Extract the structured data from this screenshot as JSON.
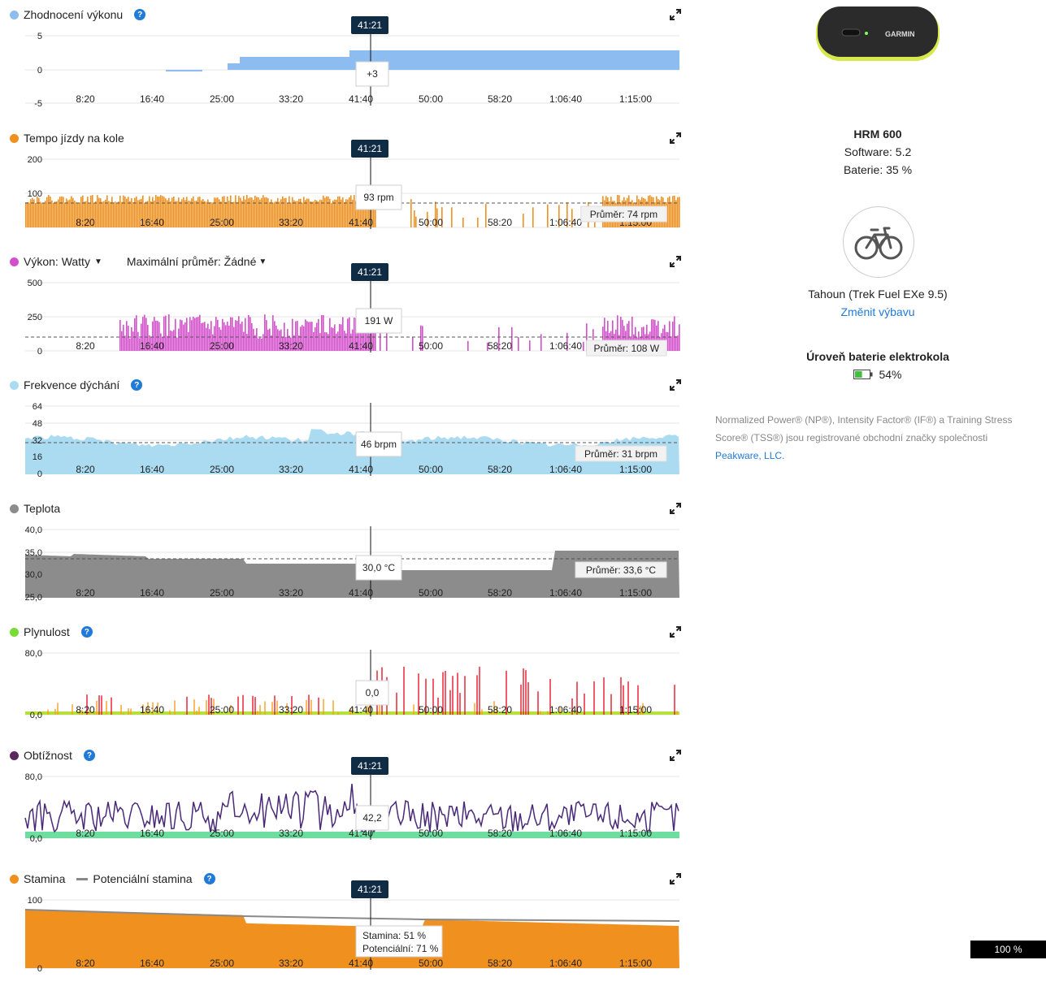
{
  "x_ticks": [
    "8:20",
    "16:40",
    "25:00",
    "33:20",
    "41:40",
    "50:00",
    "58:20",
    "1:06:40",
    "1:15:00"
  ],
  "cursor_time": "41:21",
  "charts": [
    {
      "key": "p1",
      "title": "Zhodnocení výkonu",
      "has_help": true,
      "color": "#8cbcf0",
      "y_ticks": [
        "5",
        "0",
        "-5"
      ],
      "tooltip": "+3",
      "cursor_badge": true,
      "avg_label": ""
    },
    {
      "key": "p2",
      "title": "Tempo jízdy na kole",
      "has_help": false,
      "color": "#f0901f",
      "y_ticks": [
        "200",
        "100",
        ""
      ],
      "tooltip": "93 rpm",
      "cursor_badge": true,
      "avg_label": "Průměr: 74 rpm"
    },
    {
      "key": "p3",
      "title": "Výkon: Watty",
      "has_help": false,
      "color": "#d44fcc",
      "y_ticks": [
        "500",
        "250",
        "0"
      ],
      "tooltip": "191 W",
      "cursor_badge": true,
      "avg_label": "Průměr: 108 W",
      "dropdown_label": "Maximální průměr: Žádné"
    },
    {
      "key": "p4",
      "title": "Frekvence dýchání",
      "has_help": true,
      "color": "#abdbf1",
      "y_ticks": [
        "64",
        "48",
        "32",
        "16",
        "0"
      ],
      "tooltip": "46 brpm",
      "cursor_badge": false,
      "avg_label": "Průměr: 31 brpm"
    },
    {
      "key": "p5",
      "title": "Teplota",
      "has_help": false,
      "color": "#8c8c8c",
      "y_ticks": [
        "40,0",
        "35,0",
        "30,0",
        "25,0"
      ],
      "tooltip": "30,0 °C",
      "cursor_badge": false,
      "avg_label": "Průměr: 33,6 °C"
    },
    {
      "key": "p6",
      "title": "Plynulost",
      "has_help": true,
      "color": "#77dd33",
      "y_ticks": [
        "80,0",
        "0,0"
      ],
      "tooltip": "0,0",
      "cursor_badge": false,
      "avg_label": ""
    },
    {
      "key": "p7",
      "title": "Obtížnost",
      "has_help": true,
      "color": "#5a2a5e",
      "y_ticks": [
        "80,0",
        "0,0"
      ],
      "tooltip": "42,2",
      "cursor_badge": true,
      "avg_label": ""
    },
    {
      "key": "p8",
      "title": "Stamina",
      "has_help": true,
      "color": "#f0901f",
      "y_ticks": [
        "100",
        "0"
      ],
      "tooltip": "Stamina: 51 %",
      "tooltip2": "Potenciální: 71 %",
      "cursor_badge": true,
      "avg_label": "",
      "legend2": "Potenciální stamina"
    }
  ],
  "device": {
    "name": "HRM 600",
    "software": "Software: 5.2",
    "battery": "Baterie: 35 %",
    "brand": "GARMIN"
  },
  "bike": {
    "label": "Tahoun (Trek Fuel EXe 9.5)",
    "change_link": "Změnit výbavu",
    "ebike_title": "Úroveň baterie elektrokola",
    "ebike_value": "54%",
    "ebike_level": 0.54
  },
  "footnote": {
    "text": "Normalized Power® (NP®), Intensity Factor® (IF®) a Training Stress Score® (TSS®) jsou registrované obchodní značky společnosti",
    "link": "Peakware, LLC."
  },
  "zoom": "100 %",
  "icons": [
    "expand-icon",
    "help-icon",
    "bicycle-icon",
    "battery-icon",
    "chevron-down-icon"
  ]
}
